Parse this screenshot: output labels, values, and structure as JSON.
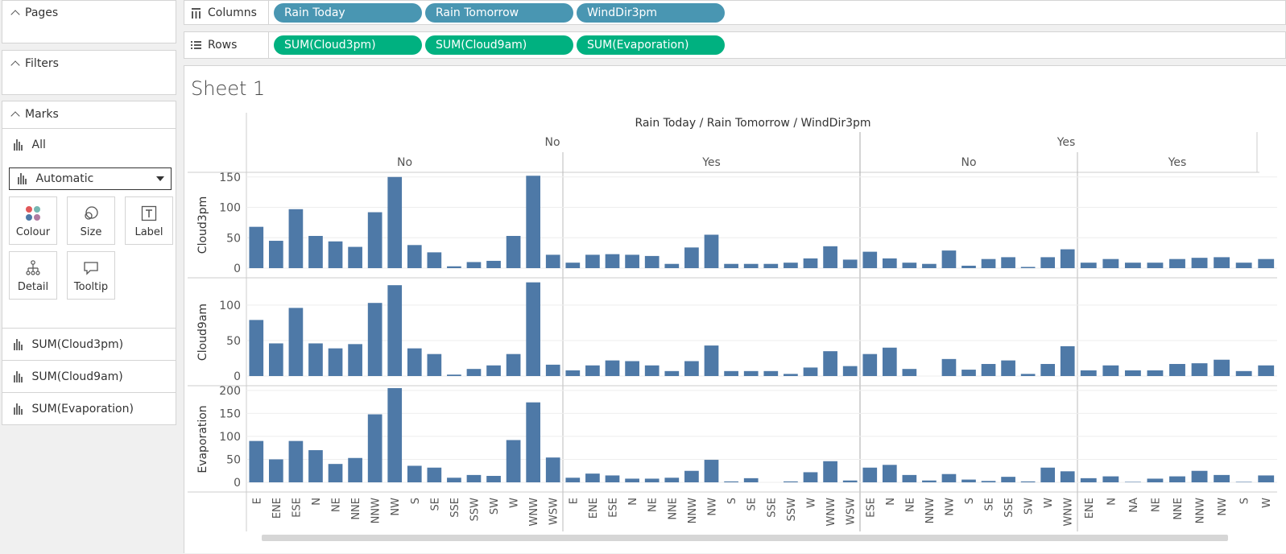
{
  "left_panel": {
    "pages_title": "Pages",
    "filters_title": "Filters",
    "marks_title": "Marks",
    "marks_all_label": "All",
    "mark_type": "Automatic",
    "mark_buttons": [
      "Colour",
      "Size",
      "Label",
      "Detail",
      "Tooltip"
    ],
    "measure_tabs": [
      "SUM(Cloud3pm)",
      "SUM(Cloud9am)",
      "SUM(Evaporation)"
    ]
  },
  "shelves": {
    "columns_label": "Columns",
    "rows_label": "Rows",
    "column_pills": [
      "Rain Today",
      "Rain Tomorrow",
      "WindDir3pm"
    ],
    "row_pills": [
      "SUM(Cloud3pm)",
      "SUM(Cloud9am)",
      "SUM(Evaporation)"
    ]
  },
  "sheet": {
    "title": "Sheet 1"
  },
  "colors": {
    "bar": "#4e79a7",
    "dimension_pill": "#4996b2",
    "measure_pill": "#00b180"
  },
  "chart_data": {
    "type": "bar",
    "header_title": "Rain Today / Rain Tomorrow / WindDir3pm",
    "panes": [
      {
        "rain_today": "No",
        "rain_tomorrow": "No",
        "categories": [
          "E",
          "ENE",
          "ESE",
          "N",
          "NE",
          "NNE",
          "NNW",
          "NW",
          "S",
          "SE",
          "SSE",
          "SSW",
          "SW",
          "W",
          "WNW",
          "WSW"
        ],
        "cloud3pm": [
          68,
          45,
          97,
          53,
          44,
          35,
          92,
          150,
          38,
          26,
          3,
          10,
          12,
          53,
          152,
          22
        ],
        "cloud9am": [
          79,
          46,
          96,
          46,
          39,
          45,
          103,
          128,
          39,
          31,
          2,
          10,
          15,
          31,
          132,
          16
        ],
        "evaporation": [
          90,
          50,
          90,
          70,
          40,
          53,
          148,
          205,
          36,
          32,
          10,
          16,
          14,
          92,
          174,
          54
        ]
      },
      {
        "rain_today": "No",
        "rain_tomorrow": "Yes",
        "categories": [
          "E",
          "ENE",
          "ESE",
          "N",
          "NE",
          "NNE",
          "NNW",
          "NW",
          "S",
          "SE",
          "SSE",
          "SSW",
          "W",
          "WNW",
          "WSW"
        ],
        "cloud3pm": [
          9,
          22,
          23,
          22,
          20,
          7,
          34,
          55,
          7,
          7,
          7,
          9,
          16,
          36,
          14
        ],
        "cloud9am": [
          8,
          15,
          22,
          21,
          15,
          7,
          21,
          43,
          7,
          7,
          7,
          3,
          12,
          35,
          14
        ],
        "evaporation": [
          10,
          19,
          15,
          8,
          8,
          10,
          25,
          49,
          2,
          9,
          0,
          2,
          22,
          46,
          4
        ]
      },
      {
        "rain_today": "Yes",
        "rain_tomorrow": "No",
        "categories": [
          "ESE",
          "N",
          "NE",
          "NNW",
          "NW",
          "S",
          "SE",
          "SSE",
          "SW",
          "W",
          "WNW"
        ],
        "cloud3pm": [
          27,
          16,
          9,
          7,
          29,
          4,
          15,
          18,
          2,
          18,
          31
        ],
        "cloud9am": [
          31,
          40,
          10,
          0,
          24,
          9,
          17,
          22,
          3,
          17,
          42
        ],
        "evaporation": [
          32,
          38,
          16,
          4,
          18,
          6,
          3,
          12,
          2,
          32,
          24
        ]
      },
      {
        "rain_today": "Yes",
        "rain_tomorrow": "Yes",
        "categories": [
          "ENE",
          "N",
          "NA",
          "NE",
          "NNE",
          "NNW",
          "NW",
          "S",
          "W"
        ],
        "cloud3pm": [
          9,
          15,
          9,
          9,
          15,
          17,
          18,
          9,
          15
        ],
        "cloud9am": [
          8,
          15,
          8,
          8,
          17,
          18,
          23,
          7,
          15
        ],
        "evaporation": [
          9,
          13,
          1,
          8,
          13,
          25,
          16,
          1,
          15
        ]
      }
    ],
    "measures": [
      {
        "key": "cloud3pm",
        "label": "Cloud3pm",
        "ylim": [
          0,
          155
        ],
        "ticks": [
          0,
          50,
          100,
          150
        ]
      },
      {
        "key": "cloud9am",
        "label": "Cloud9am",
        "ylim": [
          0,
          135
        ],
        "ticks": [
          0,
          50,
          100
        ]
      },
      {
        "key": "evaporation",
        "label": "Evaporation",
        "ylim": [
          0,
          205
        ],
        "ticks": [
          0,
          50,
          100,
          150,
          200
        ]
      }
    ]
  }
}
